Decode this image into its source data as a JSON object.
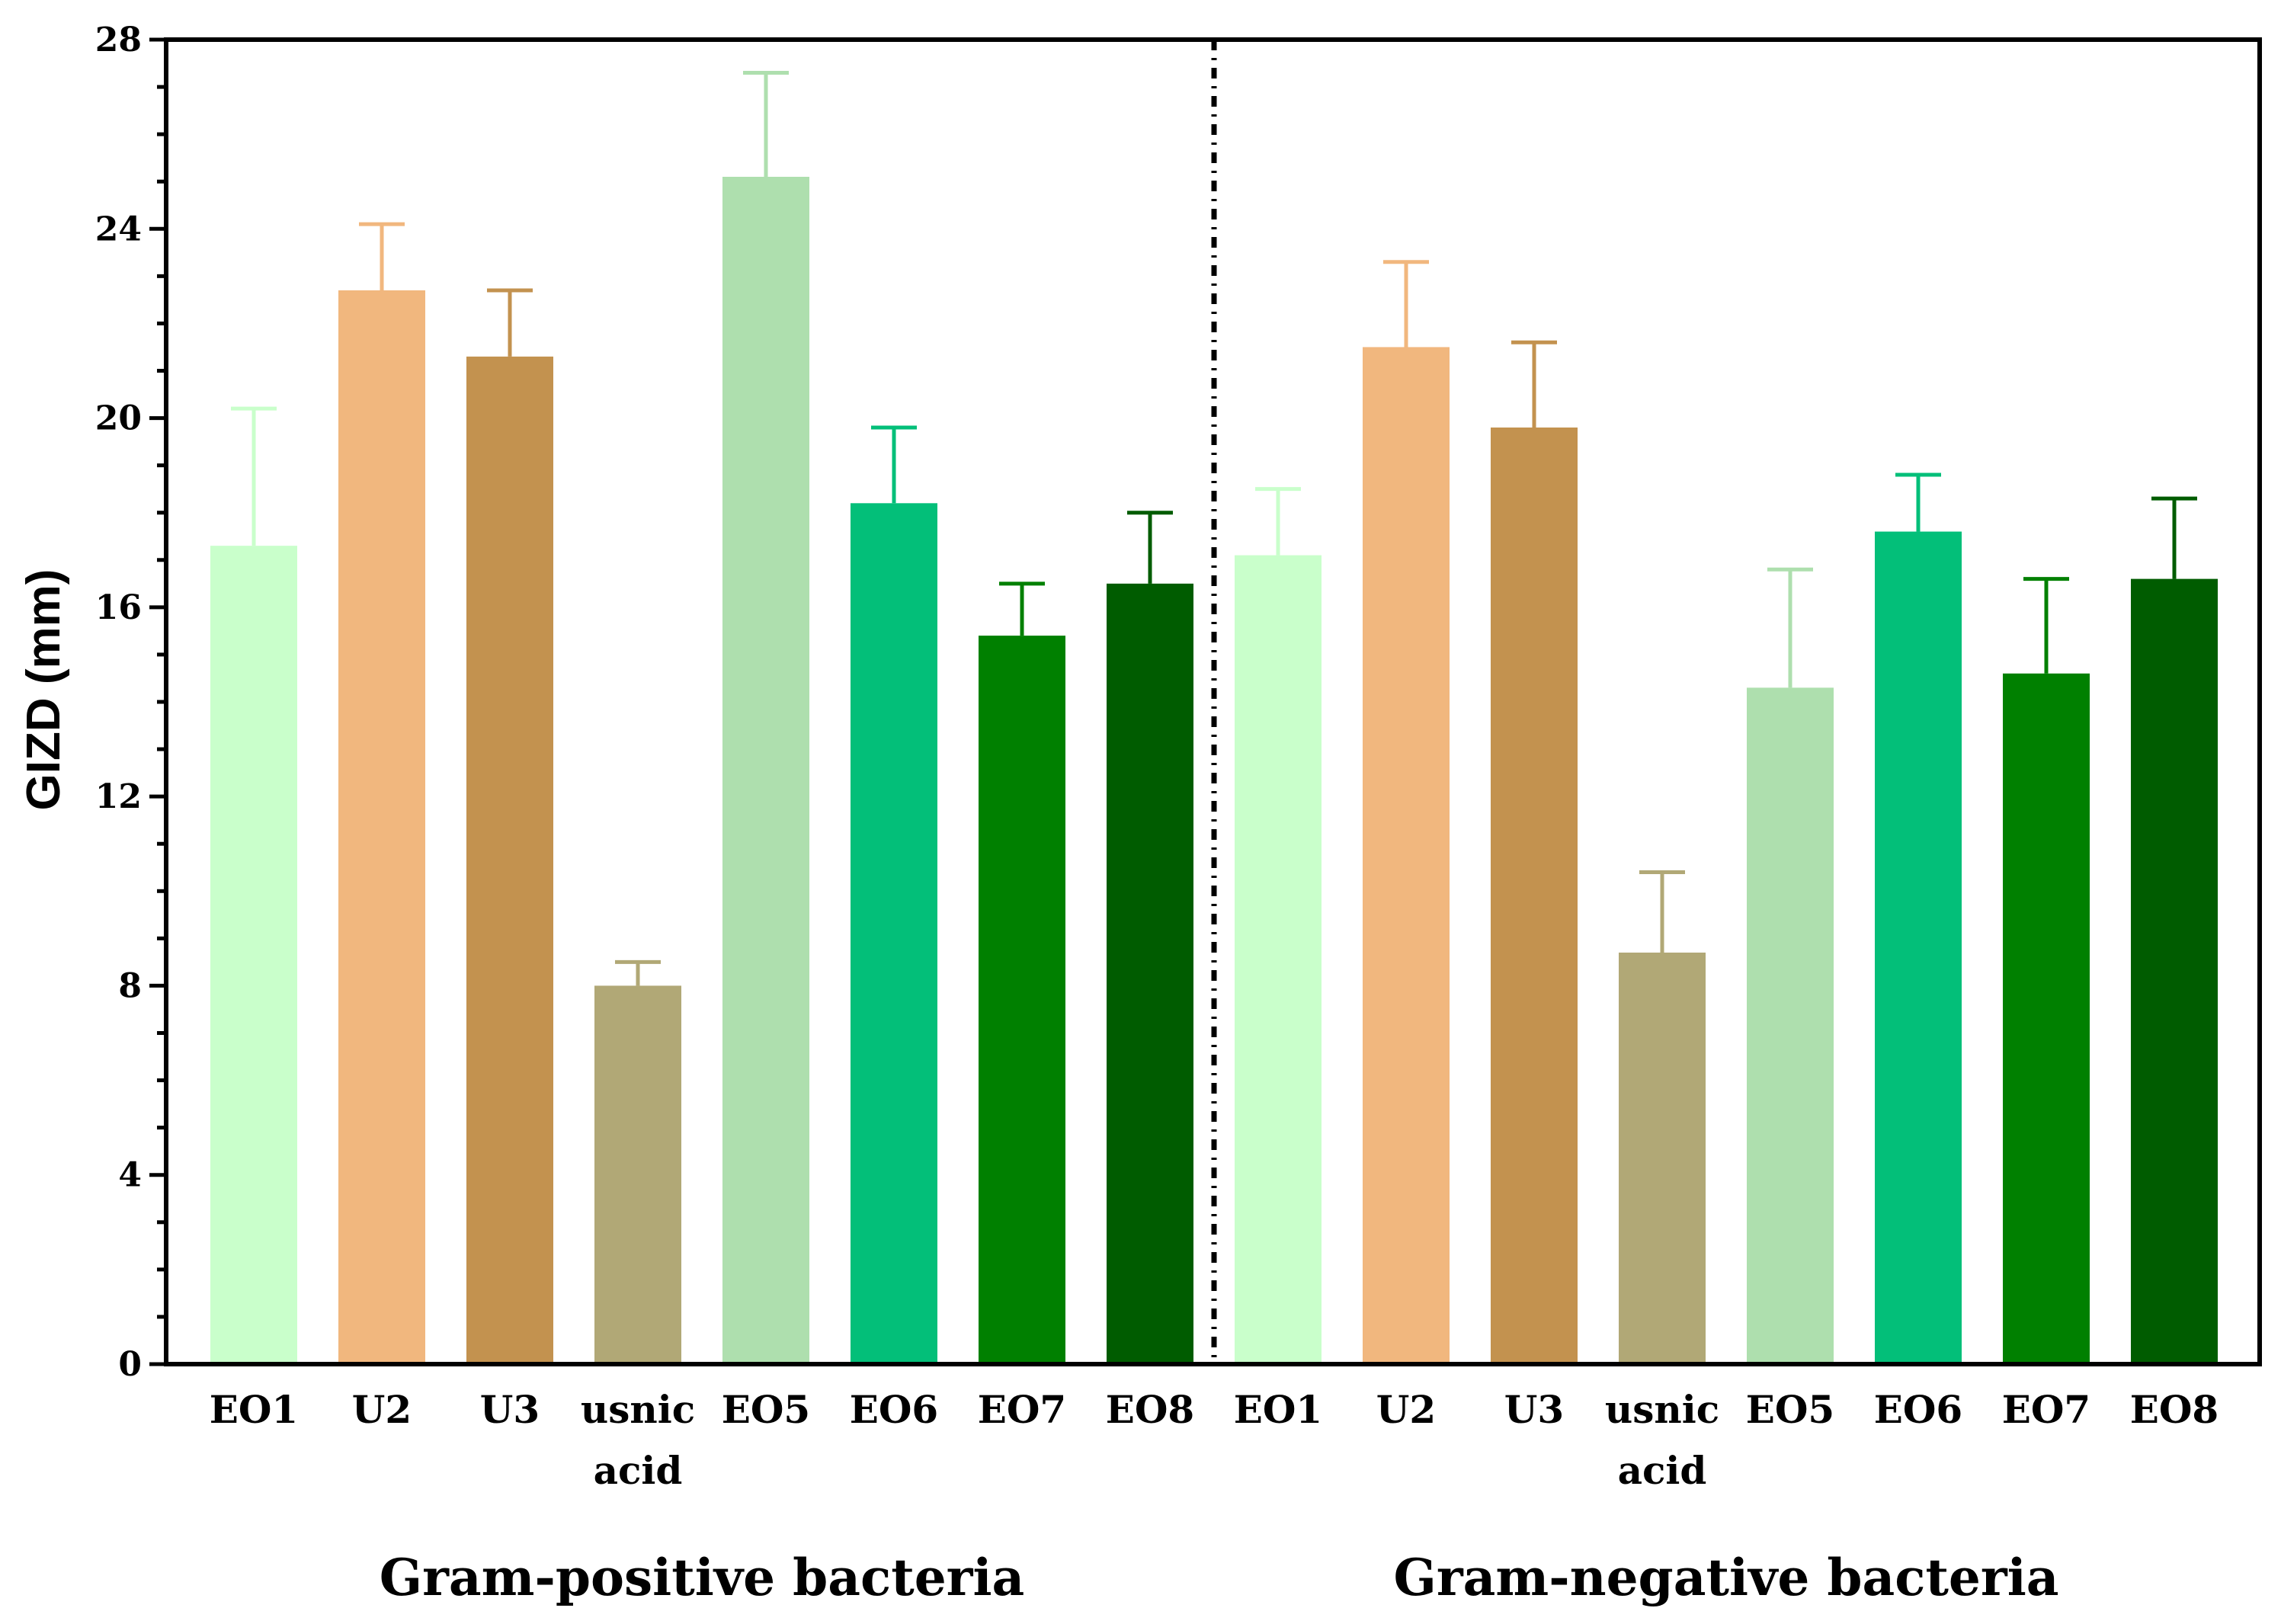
{
  "chart_data": {
    "type": "bar",
    "title": "",
    "xlabel": "",
    "ylabel": "GIZD (mm)",
    "ylim": [
      0,
      28
    ],
    "yticks_major": [
      0,
      4,
      8,
      12,
      16,
      20,
      24,
      28
    ],
    "yticks_minor_step": 1,
    "grid": false,
    "divider": "dotted vertical line between groups",
    "groups": [
      {
        "name": "Gram-positive bacteria",
        "bars": [
          {
            "label": "EO1",
            "value": 17.3,
            "err": 2.9,
            "color": "#C9FFCB"
          },
          {
            "label": "U2",
            "value": 22.7,
            "err": 1.4,
            "color": "#F1B77E"
          },
          {
            "label": "U3",
            "value": 21.3,
            "err": 1.4,
            "color": "#C3924F"
          },
          {
            "label": "usnic acid",
            "value": 8.0,
            "err": 0.5,
            "color": "#B1A876"
          },
          {
            "label": "EO5",
            "value": 25.1,
            "err": 2.2,
            "color": "#AEDFAE"
          },
          {
            "label": "EO6",
            "value": 18.2,
            "err": 1.6,
            "color": "#03BF79"
          },
          {
            "label": "EO7",
            "value": 15.4,
            "err": 1.1,
            "color": "#008000"
          },
          {
            "label": "EO8",
            "value": 16.5,
            "err": 1.5,
            "color": "#005C00"
          }
        ]
      },
      {
        "name": "Gram-negative bacteria",
        "bars": [
          {
            "label": "EO1",
            "value": 17.1,
            "err": 1.4,
            "color": "#C9FFCB"
          },
          {
            "label": "U2",
            "value": 21.5,
            "err": 1.8,
            "color": "#F1B77E"
          },
          {
            "label": "U3",
            "value": 19.8,
            "err": 1.8,
            "color": "#C3924F"
          },
          {
            "label": "usnic acid",
            "value": 8.7,
            "err": 1.7,
            "color": "#B1A876"
          },
          {
            "label": "EO5",
            "value": 14.3,
            "err": 2.5,
            "color": "#AEDFAE"
          },
          {
            "label": "EO6",
            "value": 17.6,
            "err": 1.2,
            "color": "#03BF79"
          },
          {
            "label": "EO7",
            "value": 14.6,
            "err": 2.0,
            "color": "#008000"
          },
          {
            "label": "EO8",
            "value": 16.6,
            "err": 1.7,
            "color": "#005C00"
          }
        ]
      }
    ]
  }
}
